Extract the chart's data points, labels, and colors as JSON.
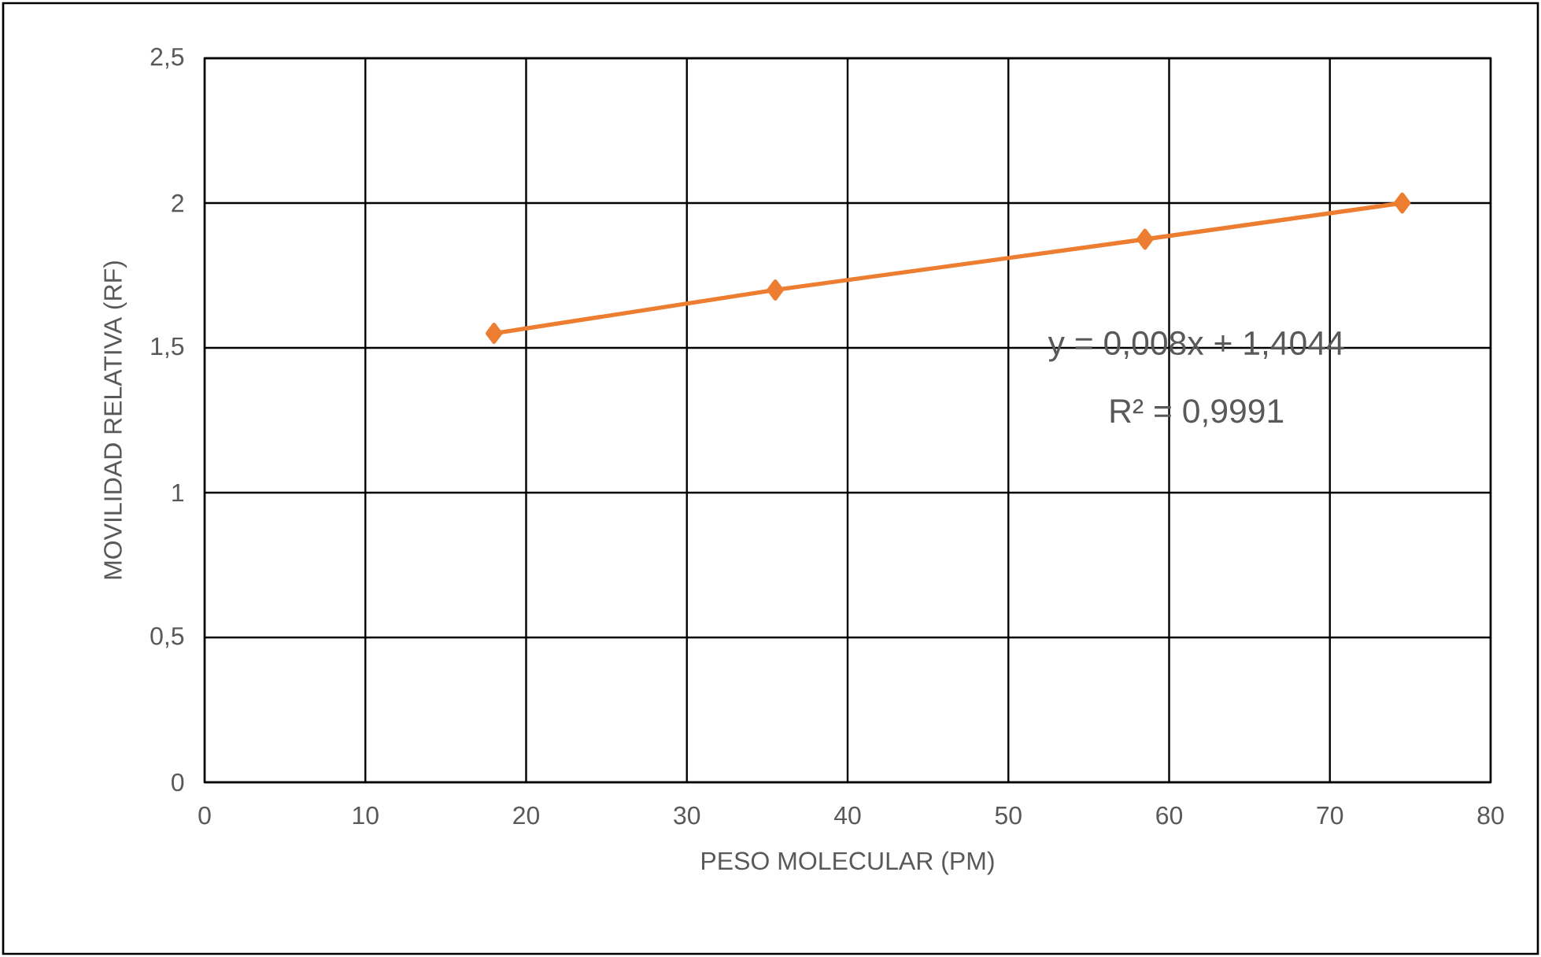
{
  "chart_data": {
    "type": "line",
    "xlabel": "PESO MOLECULAR (PM)",
    "ylabel": "MOVILIDAD RELATIVA (RF)",
    "x": [
      18.0,
      35.5,
      58.5,
      74.5
    ],
    "series": [
      {
        "color": "#ed7d31",
        "values": [
          1.55,
          1.7,
          1.875,
          2.0
        ]
      }
    ],
    "marker": "diamond",
    "grid": true,
    "xlim": [
      0,
      80
    ],
    "xticks": [
      0,
      10,
      20,
      30,
      40,
      50,
      60,
      70,
      80
    ],
    "ylim": [
      0,
      2.5
    ],
    "yticks": [
      0,
      {
        "value": 0.5,
        "label": "0,5"
      },
      1,
      {
        "value": 1.5,
        "label": "1,5"
      },
      2,
      {
        "value": 2.5,
        "label": "2,5"
      }
    ],
    "annotations": [
      "y = 0,008x + 1,4044",
      "R² = 0,9991"
    ]
  }
}
